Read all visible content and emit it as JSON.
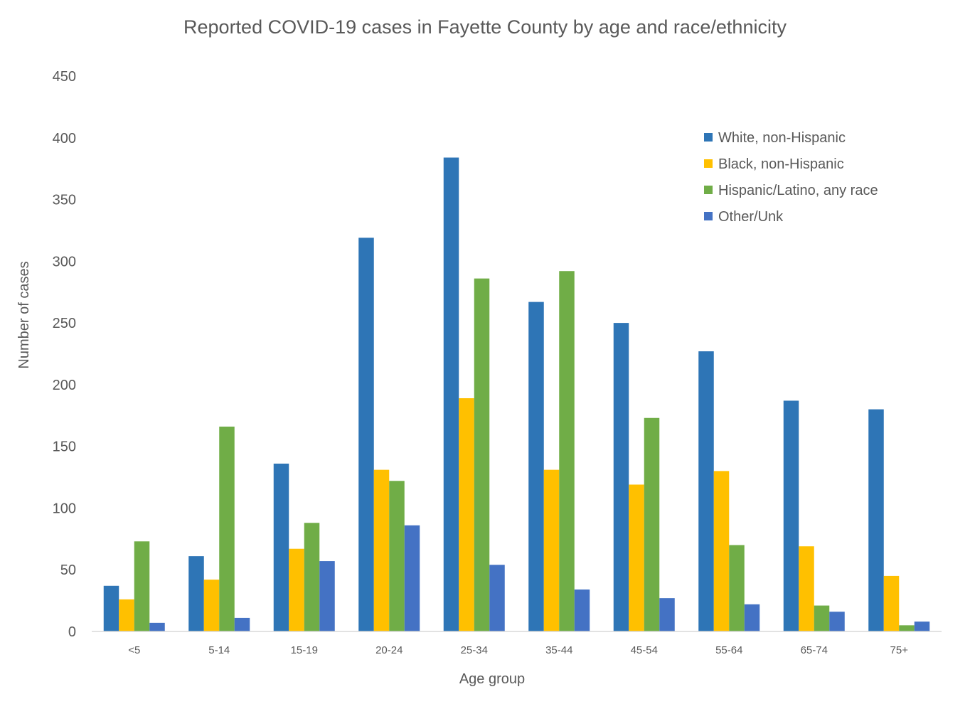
{
  "chart_data": {
    "type": "bar",
    "title": "Reported COVID-19 cases in Fayette County by age and race/ethnicity",
    "xlabel": "Age group",
    "ylabel": "Number of cases",
    "ylim": [
      0,
      450
    ],
    "yticks": [
      0,
      50,
      100,
      150,
      200,
      250,
      300,
      350,
      400,
      450
    ],
    "grid": false,
    "legend_position": "top-right",
    "categories": [
      "<5",
      "5-14",
      "15-19",
      "20-24",
      "25-34",
      "35-44",
      "45-54",
      "55-64",
      "65-74",
      "75+"
    ],
    "series": [
      {
        "name": "White, non-Hispanic",
        "color": "#2E75B6",
        "values": [
          37,
          61,
          136,
          319,
          384,
          267,
          250,
          227,
          187,
          180
        ]
      },
      {
        "name": "Black, non-Hispanic",
        "color": "#FFC000",
        "values": [
          26,
          42,
          67,
          131,
          189,
          131,
          119,
          130,
          69,
          45
        ]
      },
      {
        "name": "Hispanic/Latino, any race",
        "color": "#70AD47",
        "values": [
          73,
          166,
          88,
          122,
          286,
          292,
          173,
          70,
          21,
          5
        ]
      },
      {
        "name": "Other/Unk",
        "color": "#4472C4",
        "values": [
          7,
          11,
          57,
          86,
          54,
          34,
          27,
          22,
          16,
          8
        ]
      }
    ]
  }
}
